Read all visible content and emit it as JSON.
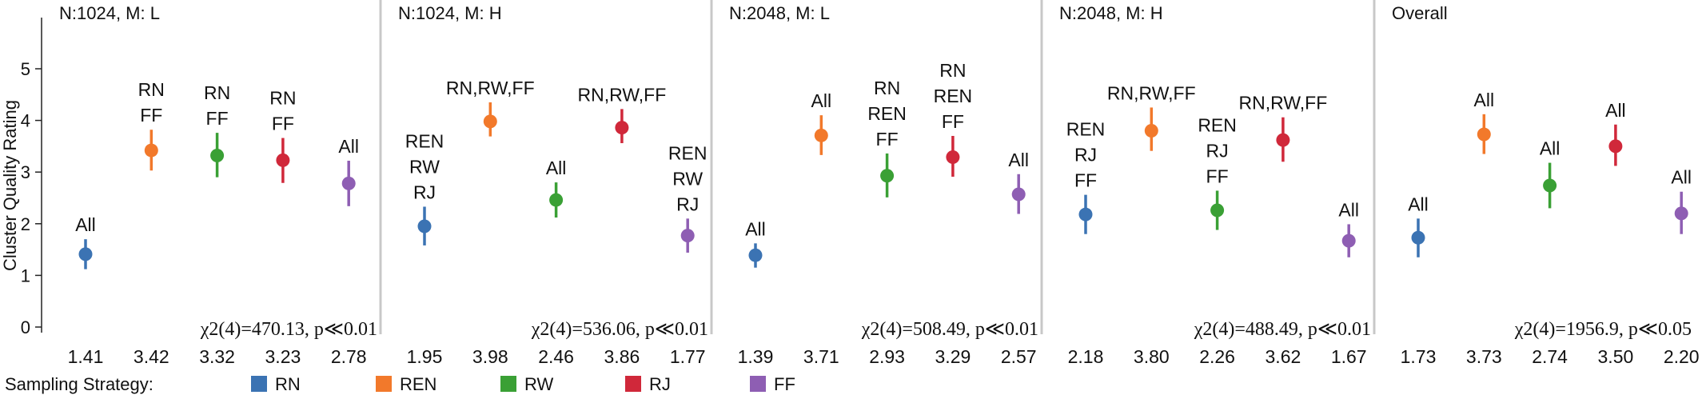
{
  "chart_data": {
    "type": "scatter",
    "ylabel": "Cluster Quality Rating",
    "ylim": [
      0,
      5
    ],
    "yticks": [
      "0",
      "1",
      "2",
      "3",
      "4",
      "5"
    ],
    "legend": {
      "title": "Sampling Strategy:",
      "placement": "bottom",
      "items": [
        {
          "name": "RN",
          "color": "#3b73b3"
        },
        {
          "name": "REN",
          "color": "#f2792b"
        },
        {
          "name": "RW",
          "color": "#3aa035"
        },
        {
          "name": "RJ",
          "color": "#d0283a"
        },
        {
          "name": "FF",
          "color": "#8e5eb3"
        }
      ]
    },
    "panels": [
      {
        "title": "N:1024, M: L",
        "stat": "χ2(4)=470.13, p≪0.01",
        "points": [
          {
            "series": "RN",
            "mean": 1.41,
            "label": "1.41",
            "lo": 1.12,
            "hi": 1.7,
            "annotation": [
              "All"
            ]
          },
          {
            "series": "REN",
            "mean": 3.42,
            "label": "3.42",
            "lo": 3.03,
            "hi": 3.82,
            "annotation": [
              "RN",
              "FF"
            ]
          },
          {
            "series": "RW",
            "mean": 3.32,
            "label": "3.32",
            "lo": 2.9,
            "hi": 3.76,
            "annotation": [
              "RN",
              "FF"
            ]
          },
          {
            "series": "RJ",
            "mean": 3.23,
            "label": "3.23",
            "lo": 2.79,
            "hi": 3.66,
            "annotation": [
              "RN",
              "FF"
            ]
          },
          {
            "series": "FF",
            "mean": 2.78,
            "label": "2.78",
            "lo": 2.34,
            "hi": 3.22,
            "annotation": [
              "All"
            ]
          }
        ]
      },
      {
        "title": "N:1024, M: H",
        "stat": "χ2(4)=536.06, p≪0.01",
        "points": [
          {
            "series": "RN",
            "mean": 1.95,
            "label": "1.95",
            "lo": 1.58,
            "hi": 2.33,
            "annotation": [
              "REN",
              "RW",
              "RJ"
            ]
          },
          {
            "series": "REN",
            "mean": 3.98,
            "label": "3.98",
            "lo": 3.69,
            "hi": 4.35,
            "annotation": [
              "RN,RW,FF"
            ]
          },
          {
            "series": "RW",
            "mean": 2.46,
            "label": "2.46",
            "lo": 2.12,
            "hi": 2.8,
            "annotation": [
              "All"
            ]
          },
          {
            "series": "RJ",
            "mean": 3.86,
            "label": "3.86",
            "lo": 3.56,
            "hi": 4.22,
            "annotation": [
              "RN,RW,FF"
            ]
          },
          {
            "series": "FF",
            "mean": 1.77,
            "label": "1.77",
            "lo": 1.44,
            "hi": 2.1,
            "annotation": [
              "REN",
              "RW",
              "RJ"
            ]
          }
        ]
      },
      {
        "title": "N:2048, M: L",
        "stat": "χ2(4)=508.49, p≪0.01",
        "points": [
          {
            "series": "RN",
            "mean": 1.39,
            "label": "1.39",
            "lo": 1.15,
            "hi": 1.62,
            "annotation": [
              "All"
            ]
          },
          {
            "series": "REN",
            "mean": 3.71,
            "label": "3.71",
            "lo": 3.33,
            "hi": 4.1,
            "annotation": [
              "All"
            ]
          },
          {
            "series": "RW",
            "mean": 2.93,
            "label": "2.93",
            "lo": 2.51,
            "hi": 3.36,
            "annotation": [
              "RN",
              "REN",
              "FF"
            ]
          },
          {
            "series": "RJ",
            "mean": 3.29,
            "label": "3.29",
            "lo": 2.91,
            "hi": 3.7,
            "annotation": [
              "RN",
              "REN",
              "FF"
            ]
          },
          {
            "series": "FF",
            "mean": 2.57,
            "label": "2.57",
            "lo": 2.19,
            "hi": 2.96,
            "annotation": [
              "All"
            ]
          }
        ]
      },
      {
        "title": "N:2048, M: H",
        "stat": "χ2(4)=488.49, p≪0.01",
        "points": [
          {
            "series": "RN",
            "mean": 2.18,
            "label": "2.18",
            "lo": 1.8,
            "hi": 2.56,
            "annotation": [
              "REN",
              "RJ",
              "FF"
            ]
          },
          {
            "series": "REN",
            "mean": 3.8,
            "label": "3.80",
            "lo": 3.41,
            "hi": 4.25,
            "annotation": [
              "RN,RW,FF"
            ]
          },
          {
            "series": "RW",
            "mean": 2.26,
            "label": "2.26",
            "lo": 1.88,
            "hi": 2.64,
            "annotation": [
              "REN",
              "RJ",
              "FF"
            ]
          },
          {
            "series": "RJ",
            "mean": 3.62,
            "label": "3.62",
            "lo": 3.2,
            "hi": 4.06,
            "annotation": [
              "RN,RW,FF"
            ]
          },
          {
            "series": "FF",
            "mean": 1.67,
            "label": "1.67",
            "lo": 1.35,
            "hi": 1.99,
            "annotation": [
              "All"
            ]
          }
        ]
      },
      {
        "title": "Overall",
        "stat": "χ2(4)=1956.9, p≪0.05",
        "points": [
          {
            "series": "RN",
            "mean": 1.73,
            "label": "1.73",
            "lo": 1.35,
            "hi": 2.1,
            "annotation": [
              "All"
            ]
          },
          {
            "series": "REN",
            "mean": 3.73,
            "label": "3.73",
            "lo": 3.35,
            "hi": 4.12,
            "annotation": [
              "All"
            ]
          },
          {
            "series": "RW",
            "mean": 2.74,
            "label": "2.74",
            "lo": 2.3,
            "hi": 3.18,
            "annotation": [
              "All"
            ]
          },
          {
            "series": "RJ",
            "mean": 3.5,
            "label": "3.50",
            "lo": 3.12,
            "hi": 3.92,
            "annotation": [
              "All"
            ]
          },
          {
            "series": "FF",
            "mean": 2.2,
            "label": "2.20",
            "lo": 1.8,
            "hi": 2.62,
            "annotation": [
              "All"
            ]
          }
        ]
      }
    ]
  }
}
